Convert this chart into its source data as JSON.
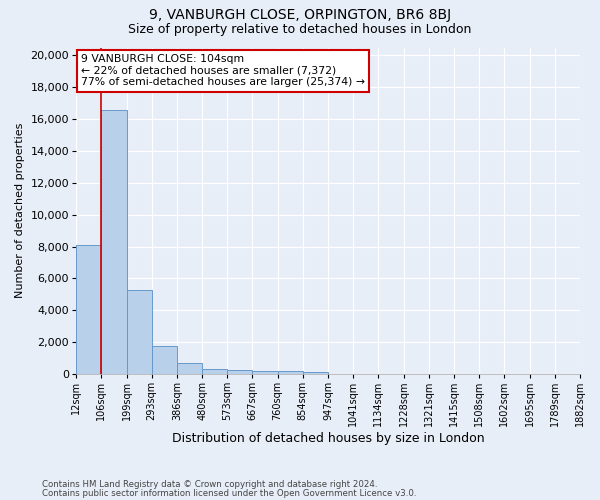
{
  "title": "9, VANBURGH CLOSE, ORPINGTON, BR6 8BJ",
  "subtitle": "Size of property relative to detached houses in London",
  "xlabel": "Distribution of detached houses by size in London",
  "ylabel": "Number of detached properties",
  "footnote1": "Contains HM Land Registry data © Crown copyright and database right 2024.",
  "footnote2": "Contains public sector information licensed under the Open Government Licence v3.0.",
  "annotation_line1": "9 VANBURGH CLOSE: 104sqm",
  "annotation_line2": "← 22% of detached houses are smaller (7,372)",
  "annotation_line3": "77% of semi-detached houses are larger (25,374) →",
  "bin_labels": [
    "12sqm",
    "106sqm",
    "199sqm",
    "293sqm",
    "386sqm",
    "480sqm",
    "573sqm",
    "667sqm",
    "760sqm",
    "854sqm",
    "947sqm",
    "1041sqm",
    "1134sqm",
    "1228sqm",
    "1321sqm",
    "1415sqm",
    "1508sqm",
    "1602sqm",
    "1695sqm",
    "1789sqm",
    "1882sqm"
  ],
  "bar_heights": [
    8100,
    16600,
    5300,
    1750,
    700,
    310,
    250,
    200,
    185,
    120,
    0,
    0,
    0,
    0,
    0,
    0,
    0,
    0,
    0,
    0
  ],
  "bar_color": "#b8d0ea",
  "bar_edge_color": "#6699cc",
  "red_line_bin": 1,
  "ylim": [
    0,
    20500
  ],
  "yticks": [
    0,
    2000,
    4000,
    6000,
    8000,
    10000,
    12000,
    14000,
    16000,
    18000,
    20000
  ],
  "background_color": "#e8eef8",
  "grid_color": "#ffffff",
  "annotation_box_color": "#ffffff",
  "annotation_border_color": "#cc0000",
  "red_line_color": "#cc0000",
  "title_fontsize": 10,
  "subtitle_fontsize": 9
}
